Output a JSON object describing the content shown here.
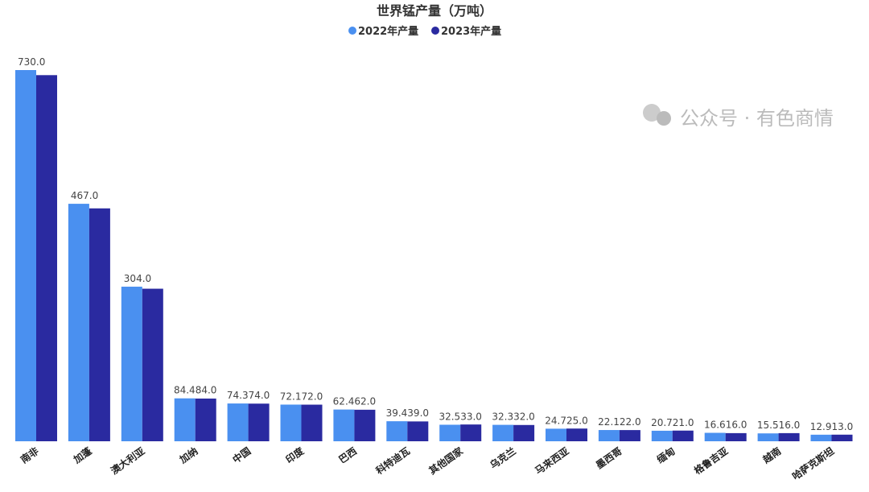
{
  "chart_data": {
    "type": "bar",
    "title": "世界锰产量（万吨）",
    "legend_position": "top",
    "grid": false,
    "categories": [
      "南非",
      "加蓬",
      "澳大利亚",
      "加纳",
      "中国",
      "印度",
      "巴西",
      "科特迪瓦",
      "其他国家",
      "乌克兰",
      "马来西亚",
      "墨西哥",
      "缅甸",
      "格鲁吉亚",
      "越南",
      "哈萨克斯坦"
    ],
    "series": [
      {
        "name": "2022年产量",
        "color": "#4a90f0",
        "values": [
          730,
          467,
          304,
          84.4,
          74.3,
          72.1,
          62.4,
          39.4,
          32.5,
          32.3,
          24.7,
          22.1,
          20.7,
          16.6,
          15.5,
          12.9
        ],
        "labels": [
          "730.0",
          "467.0",
          "304.0",
          "84.4",
          "74.3",
          "72.1",
          "62.4",
          "39.4",
          "32.5",
          "32.3",
          "24.7",
          "22.1",
          "20.7",
          "16.6",
          "15.5",
          "12.9"
        ]
      },
      {
        "name": "2023年产量",
        "color": "#2a2aa0",
        "values": [
          720,
          458,
          300,
          84,
          74,
          72,
          62,
          39,
          33,
          32,
          25,
          22,
          21,
          16,
          16,
          13
        ],
        "labels": [
          null,
          null,
          null,
          "84.0",
          "74.0",
          "72.0",
          "62.0",
          "39.0",
          "33.0",
          "32.0",
          "25.0",
          "22.0",
          "21.0",
          "16.0",
          "16.0",
          "13.0"
        ]
      }
    ],
    "ylim": [
      0,
      730
    ]
  },
  "watermark": "公众号 · 有色商情"
}
